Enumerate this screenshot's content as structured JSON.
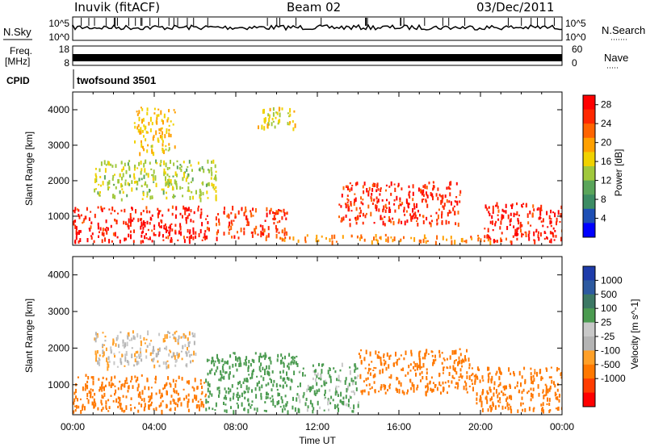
{
  "header": {
    "station": "Inuvik (fitACF)",
    "beam": "Beam 02",
    "date": "03/Dec/2011"
  },
  "strips": {
    "nsky_label": "N.Sky",
    "nsearch_label": "N.Search",
    "freq_label": "Freq.",
    "freq_unit": "[MHz]",
    "nave_label": "Nave",
    "cpid_label": "CPID",
    "cpid_value": "twofsound 3501",
    "noise_ticks": [
      "10^5",
      "10^0"
    ],
    "freq_ticks": [
      "18",
      "8"
    ],
    "nave_ticks": [
      "60",
      "0"
    ]
  },
  "colors": {
    "frame": "#000000",
    "power_scale": [
      "#0000ff",
      "#1e4fb4",
      "#3c8c64",
      "#5aa55a",
      "#a0c83c",
      "#f0d200",
      "#ffa000",
      "#ff6400",
      "#ff2800",
      "#ff0000"
    ],
    "velocity_scale": [
      "#1e3caa",
      "#2d5aa0",
      "#3c7864",
      "#4b9b50",
      "#c8c8c8",
      "#b4b4b4",
      "#ffa028",
      "#ff7800",
      "#ff3c00",
      "#ff0000"
    ]
  },
  "chart_data": [
    {
      "type": "heatmap",
      "name": "power",
      "title": "",
      "xlabel": "",
      "ylabel": "Slant Range [km]",
      "xlim": [
        "00:00",
        "24:00"
      ],
      "ylim": [
        180,
        4500
      ],
      "y_ticks": [
        1000,
        2000,
        3000,
        4000
      ],
      "colorbar": {
        "label": "Power [dB]",
        "ticks": [
          4,
          8,
          12,
          16,
          20,
          24,
          28
        ],
        "range": [
          0,
          30
        ]
      },
      "echo_regions": [
        {
          "t_start": "00:00",
          "t_end": "06:40",
          "range_km": [
            300,
            1300
          ],
          "power_db": 28
        },
        {
          "t_start": "07:00",
          "t_end": "10:30",
          "range_km": [
            400,
            1300
          ],
          "power_db": 26
        },
        {
          "t_start": "13:00",
          "t_end": "19:00",
          "range_km": [
            800,
            2000
          ],
          "power_db": 27
        },
        {
          "t_start": "20:10",
          "t_end": "24:00",
          "range_km": [
            300,
            1400
          ],
          "power_db": 28
        },
        {
          "t_start": "10:00",
          "t_end": "20:30",
          "range_km": [
            300,
            500
          ],
          "power_db": 22
        },
        {
          "t_start": "01:00",
          "t_end": "07:00",
          "range_km": [
            1500,
            2600
          ],
          "power_db": 14
        },
        {
          "t_start": "03:00",
          "t_end": "05:00",
          "range_km": [
            2800,
            4100
          ],
          "power_db": 18
        },
        {
          "t_start": "09:00",
          "t_end": "11:00",
          "range_km": [
            3500,
            4100
          ],
          "power_db": 16
        }
      ]
    },
    {
      "type": "heatmap",
      "name": "velocity",
      "title": "",
      "xlabel": "Time UT",
      "ylabel": "Slant Range [km]",
      "xlim": [
        "00:00",
        "24:00"
      ],
      "x_ticks": [
        "00:00",
        "04:00",
        "08:00",
        "12:00",
        "16:00",
        "20:00",
        "00:00"
      ],
      "ylim": [
        180,
        4500
      ],
      "y_ticks": [
        1000,
        2000,
        3000,
        4000
      ],
      "colorbar": {
        "label": "Velocity [m s^-1]",
        "ticks": [
          1000,
          500,
          100,
          25,
          -25,
          -100,
          -500,
          -1000
        ]
      },
      "echo_regions": [
        {
          "t_start": "00:00",
          "t_end": "06:30",
          "range_km": [
            300,
            1300
          ],
          "velocity_ms": -300
        },
        {
          "t_start": "06:30",
          "t_end": "11:00",
          "range_km": [
            300,
            1900
          ],
          "velocity_ms": 200
        },
        {
          "t_start": "11:00",
          "t_end": "14:00",
          "range_km": [
            300,
            1600
          ],
          "velocity_ms": 150
        },
        {
          "t_start": "14:00",
          "t_end": "19:30",
          "range_km": [
            800,
            2000
          ],
          "velocity_ms": -250
        },
        {
          "t_start": "19:30",
          "t_end": "24:00",
          "range_km": [
            300,
            1500
          ],
          "velocity_ms": -200
        },
        {
          "t_start": "01:00",
          "t_end": "06:00",
          "range_km": [
            1500,
            2500
          ],
          "velocity_ms": 0
        }
      ]
    }
  ]
}
